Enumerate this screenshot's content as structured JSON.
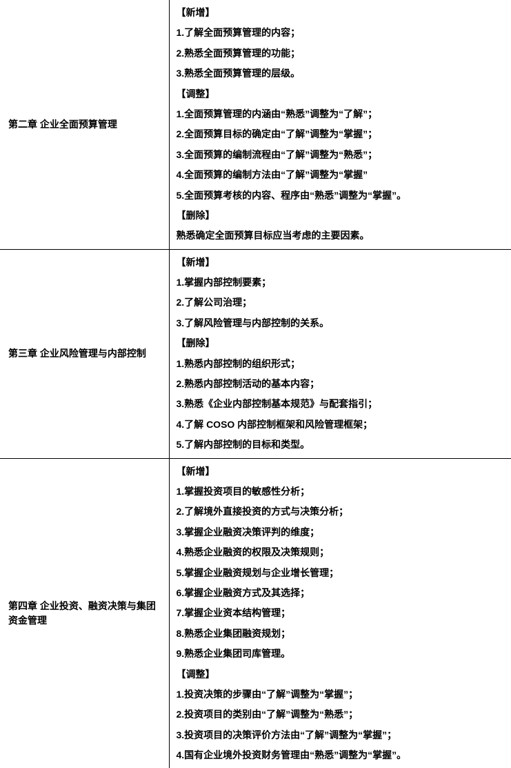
{
  "rows": [
    {
      "chapter": "第二章  企业全面预算管理",
      "lines": [
        "【新增】",
        "1.了解全面预算管理的内容；",
        "2.熟悉全面预算管理的功能；",
        "3.熟悉全面预算管理的层级。",
        "【调整】",
        "1.全面预算管理的内涵由“熟悉”调整为“了解”；",
        "2.全面预算目标的确定由“了解”调整为“掌握”；",
        "3.全面预算的编制流程由“了解”调整为“熟悉”；",
        "4.全面预算的编制方法由“了解”调整为“掌握”",
        "5.全面预算考核的内容、程序由“熟悉”调整为“掌握”。",
        "【删除】",
        "熟悉确定全面预算目标应当考虑的主要因素。"
      ]
    },
    {
      "chapter": "第三章  企业风险管理与内部控制",
      "lines": [
        "【新增】",
        "1.掌握内部控制要素；",
        "2.了解公司治理；",
        "3.了解风险管理与内部控制的关系。",
        "【删除】",
        "1.熟悉内部控制的组织形式；",
        "2.熟悉内部控制活动的基本内容；",
        "3.熟悉《企业内部控制基本规范》与配套指引；",
        "4.了解 COSO 内部控制框架和风险管理框架；",
        "5.了解内部控制的目标和类型。"
      ]
    },
    {
      "chapter": "第四章  企业投资、融资决策与集团资金管理",
      "lines": [
        "【新增】",
        "1.掌握投资项目的敏感性分析；",
        "2.了解境外直接投资的方式与决策分析；",
        "3.掌握企业融资决策评判的维度；",
        "4.熟悉企业融资的权限及决策规则；",
        "5.掌握企业融资规划与企业增长管理；",
        "6.掌握企业融资方式及其选择；",
        "7.掌握企业资本结构管理；",
        "8.熟悉企业集团融资规划；",
        "9.熟悉企业集团司库管理。",
        "【调整】",
        "1.投资决策的步骤由“了解”调整为“掌握”；",
        "2.投资项目的类别由“了解”调整为“熟悉”；",
        "3.投资项目的决策评价方法由“了解”调整为“掌握”；",
        "4.国有企业境外投资财务管理由“熟悉”调整为“掌握”。"
      ]
    }
  ]
}
